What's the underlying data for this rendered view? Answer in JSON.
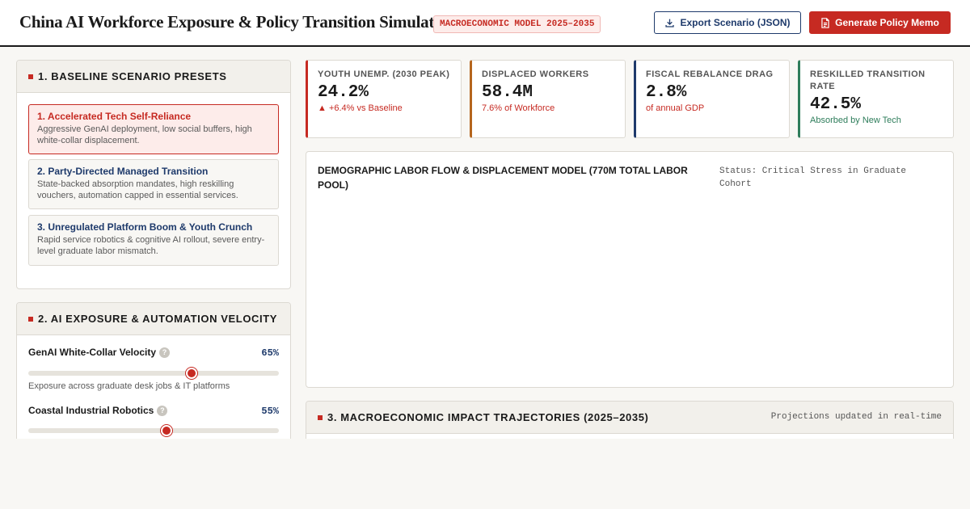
{
  "header": {
    "title": "China AI Workforce Exposure & Policy Transition Simulator",
    "tag": "MACROECONOMIC MODEL 2025–2035",
    "export_label": "Export Scenario (JSON)",
    "memo_label": "Generate Policy Memo"
  },
  "presets": {
    "title": "1. BASELINE SCENARIO PRESETS",
    "items": [
      {
        "title": "1. Accelerated Tech Self-Reliance",
        "desc": "Aggressive GenAI deployment, low social buffers, high white-collar displacement.",
        "active": true
      },
      {
        "title": "2. Party-Directed Managed Transition",
        "desc": "State-backed absorption mandates, high reskilling vouchers, automation capped in essential services.",
        "active": false
      },
      {
        "title": "3. Unregulated Platform Boom & Youth Crunch",
        "desc": "Rapid service robotics & cognitive AI rollout, severe entry-level graduate labor mismatch.",
        "active": false
      }
    ]
  },
  "exposure": {
    "title": "2. AI EXPOSURE & AUTOMATION VELOCITY",
    "sliders": [
      {
        "label": "GenAI White-Collar Velocity",
        "value_text": "65%",
        "value": 0.65,
        "note": "Exposure across graduate desk jobs & IT platforms"
      },
      {
        "label": "Coastal Industrial Robotics",
        "value_text": "55%",
        "value": 0.55,
        "note": ""
      }
    ]
  },
  "kpis": [
    {
      "label": "YOUTH UNEMP. (2030 PEAK)",
      "value": "24.2%",
      "sub": "▲ +6.4% vs Baseline",
      "accent": "#c62a22",
      "sub_color": "#c62a22"
    },
    {
      "label": "DISPLACED WORKERS",
      "value": "58.4M",
      "sub": "7.6% of Workforce",
      "accent": "#b5651d",
      "sub_color": "#c62a22"
    },
    {
      "label": "FISCAL REBALANCE DRAG",
      "value": "2.8%",
      "sub": "of annual GDP",
      "accent": "#1e3a6b",
      "sub_color": "#c62a22"
    },
    {
      "label": "RESKILLED TRANSITION RATE",
      "value": "42.5%",
      "sub": "Absorbed by New Tech",
      "accent": "#2e7d5b",
      "sub_color": "#2e7d5b"
    }
  ],
  "flow": {
    "title": "DEMOGRAPHIC LABOR FLOW & DISPLACEMENT MODEL (770M TOTAL LABOR POOL)",
    "status": "Status: Critical Stress in Graduate Cohort"
  },
  "trajectories": {
    "title": "3. MACROECONOMIC IMPACT TRAJECTORIES (2025–2035)",
    "note": "Projections updated in real-time"
  },
  "icons": {
    "export": "download-icon",
    "memo": "document-icon",
    "help": "help-icon"
  },
  "colors": {
    "accent": "#c62a22",
    "navy": "#1e3a6b"
  }
}
